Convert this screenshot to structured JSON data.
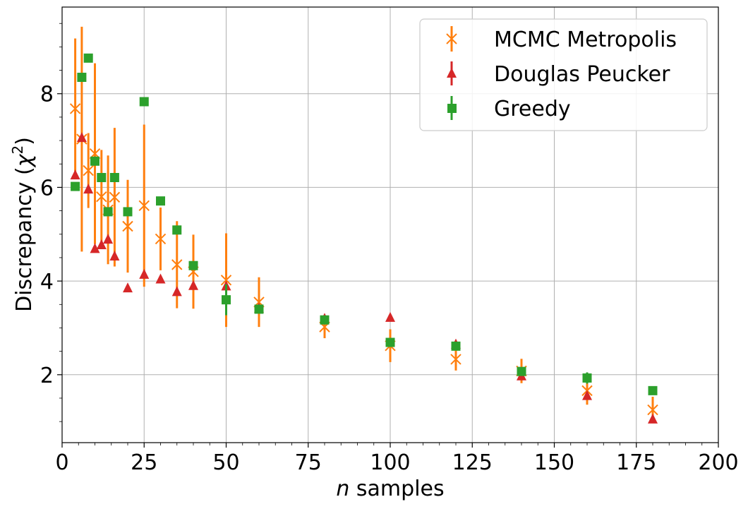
{
  "chart_data": {
    "type": "scatter",
    "xlabel_var": "n",
    "xlabel_rest": " samples",
    "ylabel_text": "Discrepancy (",
    "ylabel_sym": "χ",
    "ylabel_sup": "2",
    "ylabel_close": ")",
    "xlim": [
      0,
      200
    ],
    "ylim": [
      0.55,
      9.85
    ],
    "xticks": [
      0,
      25,
      50,
      75,
      100,
      125,
      150,
      175,
      200
    ],
    "yticks": [
      2,
      4,
      6,
      8
    ],
    "grid": true,
    "legend_position": "top-right",
    "series": [
      {
        "name": "MCMC Metropolis",
        "color": "#ff7f0e",
        "marker": "x",
        "x": [
          4,
          6,
          8,
          10,
          12,
          14,
          16,
          20,
          25,
          30,
          35,
          40,
          50,
          60,
          80,
          100,
          120,
          140,
          160,
          180
        ],
        "y": [
          7.68,
          7.03,
          6.36,
          6.72,
          5.8,
          5.52,
          5.79,
          5.17,
          5.61,
          4.9,
          4.35,
          4.2,
          4.02,
          3.55,
          3.02,
          2.62,
          2.33,
          2.08,
          1.66,
          1.25
        ],
        "yerr": [
          1.5,
          2.4,
          0.8,
          1.93,
          1.0,
          1.16,
          1.48,
          0.99,
          1.73,
          0.67,
          0.93,
          0.79,
          1.0,
          0.53,
          0.24,
          0.35,
          0.24,
          0.26,
          0.3,
          0.28
        ]
      },
      {
        "name": "Douglas Peucker",
        "color": "#d62728",
        "marker": "^",
        "x": [
          4,
          6,
          8,
          10,
          12,
          14,
          16,
          20,
          25,
          30,
          35,
          40,
          50,
          60,
          80,
          100,
          120,
          140,
          160,
          180
        ],
        "y": [
          6.26,
          7.06,
          5.96,
          4.69,
          4.77,
          4.89,
          4.53,
          3.85,
          4.14,
          4.04,
          3.77,
          3.9,
          3.89,
          3.42,
          3.2,
          3.22,
          2.65,
          1.97,
          1.55,
          1.05
        ],
        "yerr": [
          0,
          0,
          0,
          0,
          0,
          0,
          0,
          0,
          0,
          0,
          0,
          0,
          0,
          0,
          0,
          0,
          0,
          0,
          0,
          0
        ]
      },
      {
        "name": "Greedy",
        "color": "#2ca02c",
        "marker": "s",
        "x": [
          4,
          6,
          8,
          10,
          12,
          14,
          16,
          20,
          25,
          30,
          35,
          40,
          50,
          60,
          80,
          100,
          120,
          140,
          160,
          180
        ],
        "y": [
          6.02,
          8.35,
          8.76,
          6.56,
          6.21,
          5.48,
          6.21,
          5.48,
          7.83,
          5.71,
          5.09,
          4.33,
          3.6,
          3.4,
          3.17,
          2.69,
          2.61,
          2.07,
          1.93,
          1.66
        ],
        "yerr": [
          0,
          0,
          0,
          0,
          0,
          0,
          0,
          0,
          0,
          0,
          0,
          0,
          0.33,
          0,
          0,
          0,
          0,
          0,
          0.12,
          0
        ]
      }
    ]
  }
}
